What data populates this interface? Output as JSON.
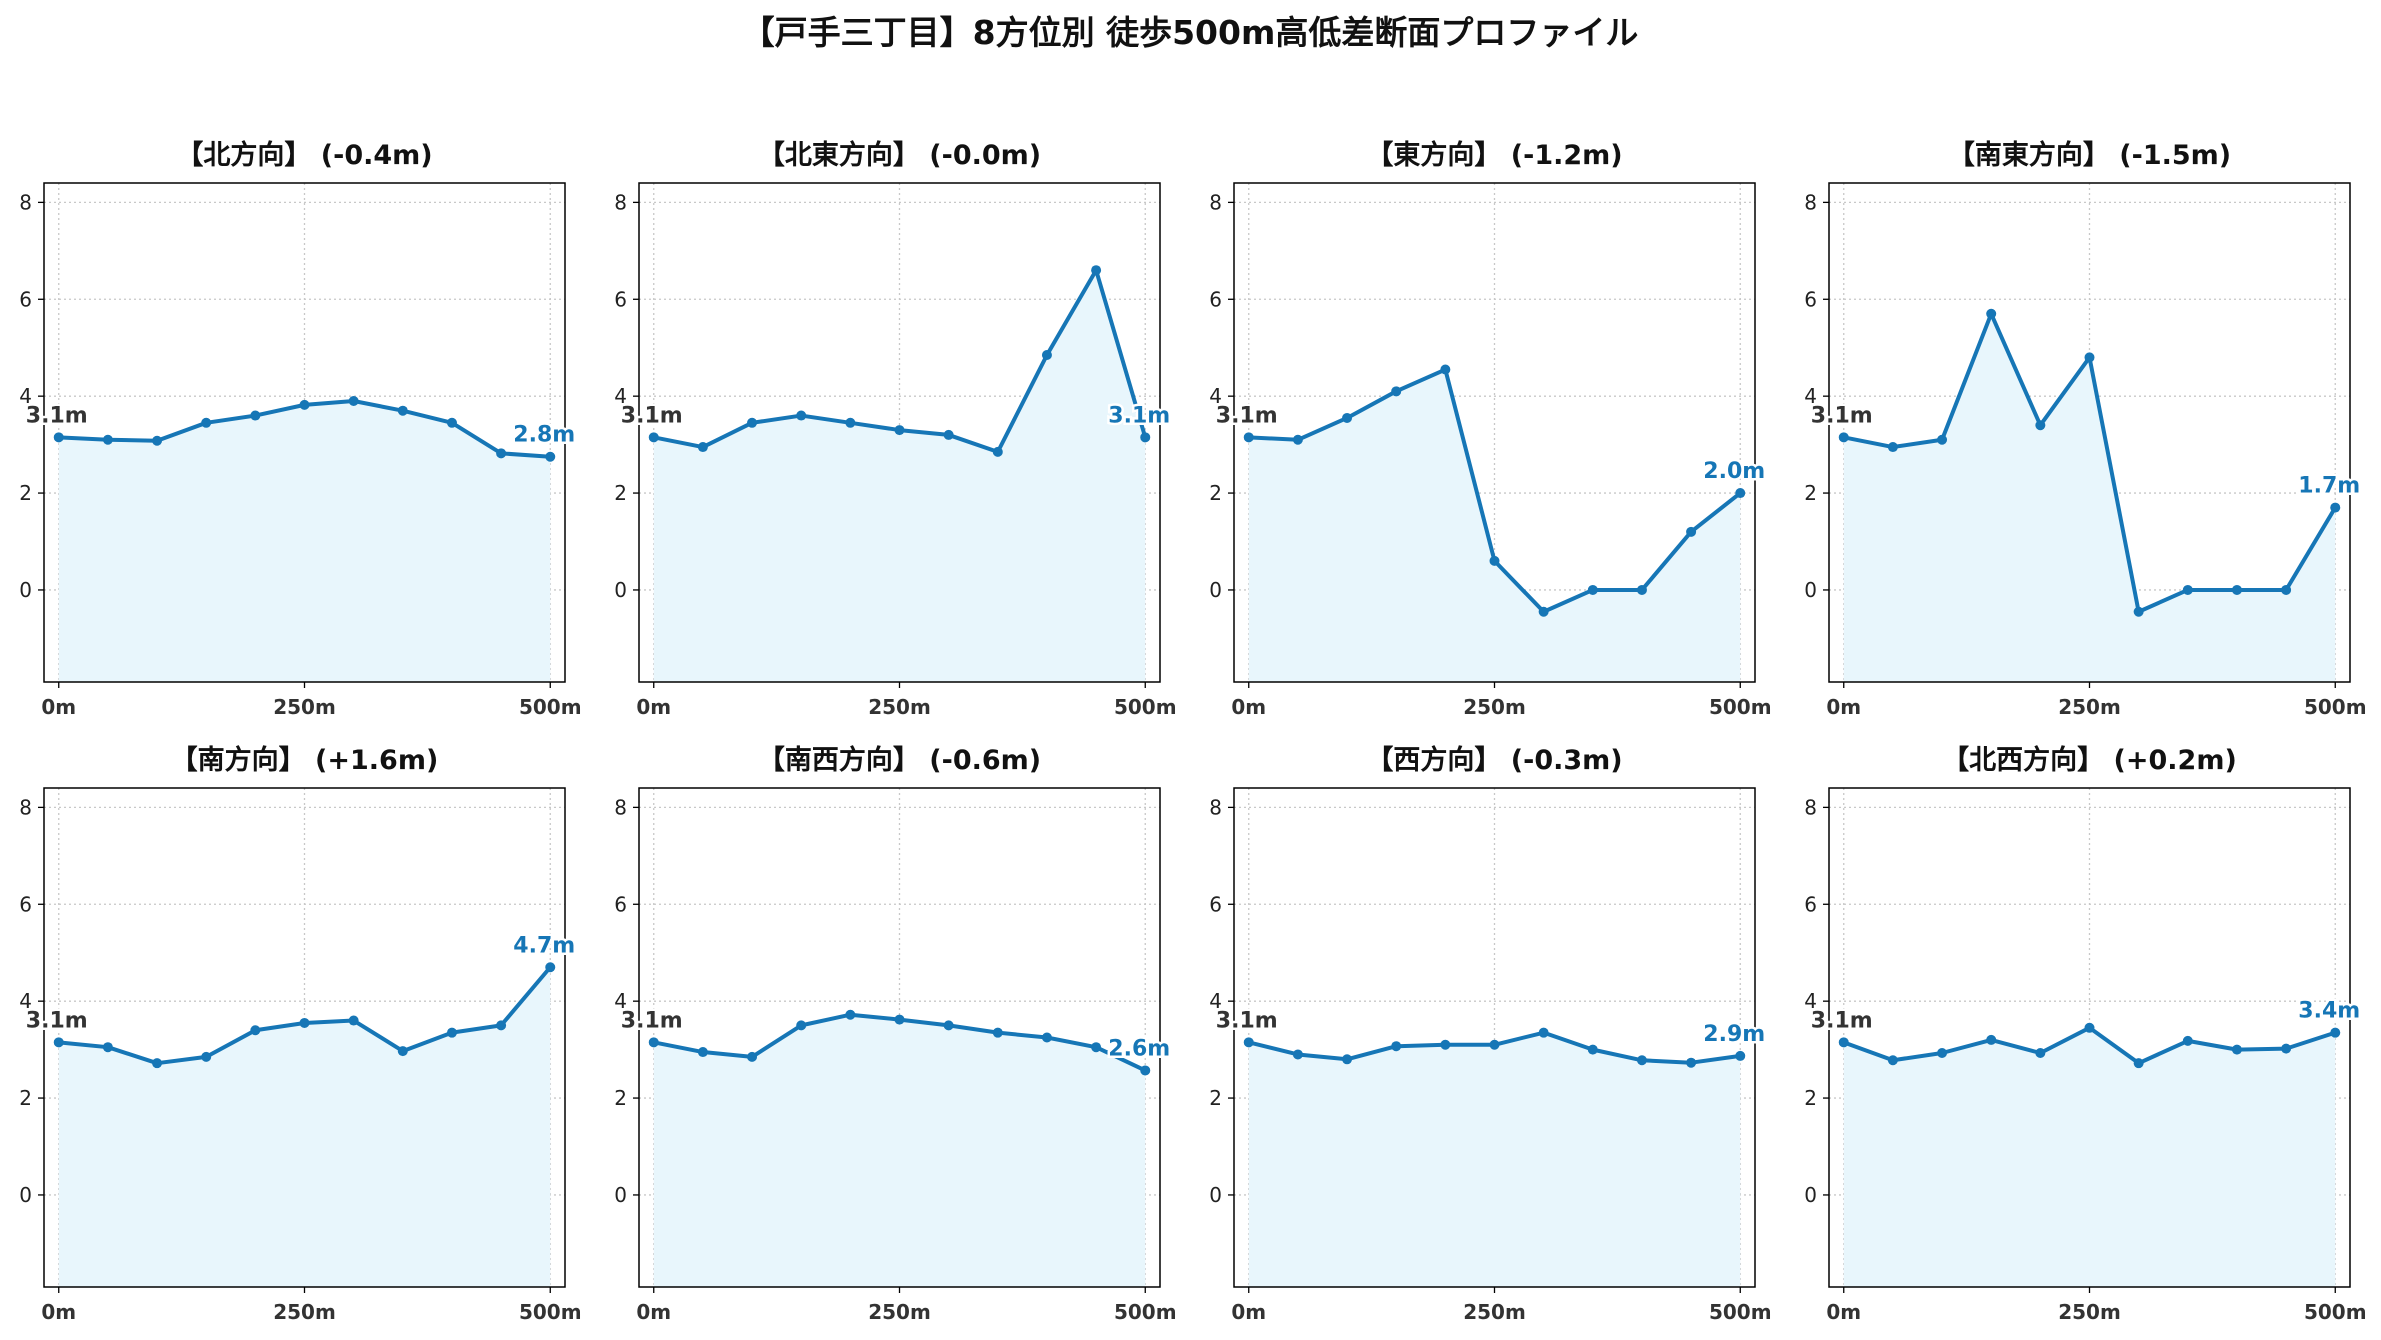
{
  "title": "【戸手三丁目】8方位別 徒歩500m高低差断面プロファイル",
  "colors": {
    "line": "#1676b6",
    "fill": "#e8f6fc",
    "grid": "#c8c8c8",
    "end_label": "#1676b6",
    "start_label": "#333333"
  },
  "chart_data": [
    {
      "type": "area",
      "title": "【北方向】 (-0.4m)",
      "x": [
        0,
        50,
        100,
        150,
        200,
        250,
        300,
        350,
        400,
        450,
        500
      ],
      "y": [
        3.15,
        3.1,
        3.08,
        3.45,
        3.6,
        3.82,
        3.9,
        3.7,
        3.45,
        2.82,
        2.75
      ],
      "xticks": [
        "0m",
        "250m",
        "500m"
      ],
      "yticks": [
        "0",
        "2",
        "4",
        "6",
        "8"
      ],
      "ylim": [
        -1.9,
        8.4
      ],
      "xlim": [
        -15,
        515
      ],
      "start_label": "3.1m",
      "end_label": "2.8m",
      "grid": true
    },
    {
      "type": "area",
      "title": "【北東方向】 (-0.0m)",
      "x": [
        0,
        50,
        100,
        150,
        200,
        250,
        300,
        350,
        400,
        450,
        500
      ],
      "y": [
        3.15,
        2.95,
        3.45,
        3.6,
        3.45,
        3.3,
        3.2,
        2.85,
        4.85,
        6.6,
        3.15
      ],
      "xticks": [
        "0m",
        "250m",
        "500m"
      ],
      "yticks": [
        "0",
        "2",
        "4",
        "6",
        "8"
      ],
      "ylim": [
        -1.9,
        8.4
      ],
      "xlim": [
        -15,
        515
      ],
      "start_label": "3.1m",
      "end_label": "3.1m",
      "grid": true
    },
    {
      "type": "area",
      "title": "【東方向】 (-1.2m)",
      "x": [
        0,
        50,
        100,
        150,
        200,
        250,
        300,
        350,
        400,
        450,
        500
      ],
      "y": [
        3.15,
        3.1,
        3.55,
        4.1,
        4.55,
        0.6,
        -0.45,
        0.0,
        0.0,
        1.2,
        2.0
      ],
      "xticks": [
        "0m",
        "250m",
        "500m"
      ],
      "yticks": [
        "0",
        "2",
        "4",
        "6",
        "8"
      ],
      "ylim": [
        -1.9,
        8.4
      ],
      "xlim": [
        -15,
        515
      ],
      "start_label": "3.1m",
      "end_label": "2.0m",
      "grid": true
    },
    {
      "type": "area",
      "title": "【南東方向】 (-1.5m)",
      "x": [
        0,
        50,
        100,
        150,
        200,
        250,
        300,
        350,
        400,
        450,
        500
      ],
      "y": [
        3.15,
        2.95,
        3.1,
        5.7,
        3.4,
        4.8,
        -0.45,
        0.0,
        0.0,
        0.0,
        1.7
      ],
      "xticks": [
        "0m",
        "250m",
        "500m"
      ],
      "yticks": [
        "0",
        "2",
        "4",
        "6",
        "8"
      ],
      "ylim": [
        -1.9,
        8.4
      ],
      "xlim": [
        -15,
        515
      ],
      "start_label": "3.1m",
      "end_label": "1.7m",
      "grid": true
    },
    {
      "type": "area",
      "title": "【南方向】 (+1.6m)",
      "x": [
        0,
        50,
        100,
        150,
        200,
        250,
        300,
        350,
        400,
        450,
        500
      ],
      "y": [
        3.15,
        3.05,
        2.72,
        2.85,
        3.4,
        3.55,
        3.6,
        2.97,
        3.35,
        3.5,
        4.7
      ],
      "xticks": [
        "0m",
        "250m",
        "500m"
      ],
      "yticks": [
        "0",
        "2",
        "4",
        "6",
        "8"
      ],
      "ylim": [
        -1.9,
        8.4
      ],
      "xlim": [
        -15,
        515
      ],
      "start_label": "3.1m",
      "end_label": "4.7m",
      "grid": true
    },
    {
      "type": "area",
      "title": "【南西方向】 (-0.6m)",
      "x": [
        0,
        50,
        100,
        150,
        200,
        250,
        300,
        350,
        400,
        450,
        500
      ],
      "y": [
        3.15,
        2.95,
        2.85,
        3.5,
        3.72,
        3.62,
        3.5,
        3.35,
        3.25,
        3.05,
        2.57
      ],
      "xticks": [
        "0m",
        "250m",
        "500m"
      ],
      "yticks": [
        "0",
        "2",
        "4",
        "6",
        "8"
      ],
      "ylim": [
        -1.9,
        8.4
      ],
      "xlim": [
        -15,
        515
      ],
      "start_label": "3.1m",
      "end_label": "2.6m",
      "grid": true
    },
    {
      "type": "area",
      "title": "【西方向】 (-0.3m)",
      "x": [
        0,
        50,
        100,
        150,
        200,
        250,
        300,
        350,
        400,
        450,
        500
      ],
      "y": [
        3.15,
        2.9,
        2.8,
        3.07,
        3.1,
        3.1,
        3.35,
        3.0,
        2.78,
        2.73,
        2.87
      ],
      "xticks": [
        "0m",
        "250m",
        "500m"
      ],
      "yticks": [
        "0",
        "2",
        "4",
        "6",
        "8"
      ],
      "ylim": [
        -1.9,
        8.4
      ],
      "xlim": [
        -15,
        515
      ],
      "start_label": "3.1m",
      "end_label": "2.9m",
      "grid": true
    },
    {
      "type": "area",
      "title": "【北西方向】 (+0.2m)",
      "x": [
        0,
        50,
        100,
        150,
        200,
        250,
        300,
        350,
        400,
        450,
        500
      ],
      "y": [
        3.15,
        2.78,
        2.93,
        3.2,
        2.93,
        3.45,
        2.72,
        3.18,
        3.0,
        3.02,
        3.35
      ],
      "xticks": [
        "0m",
        "250m",
        "500m"
      ],
      "yticks": [
        "0",
        "2",
        "4",
        "6",
        "8"
      ],
      "ylim": [
        -1.9,
        8.4
      ],
      "xlim": [
        -15,
        515
      ],
      "start_label": "3.1m",
      "end_label": "3.4m",
      "grid": true
    }
  ]
}
